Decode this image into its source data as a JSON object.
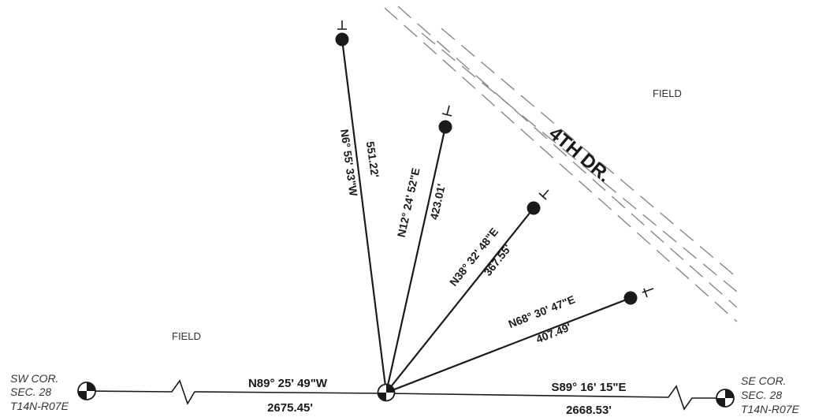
{
  "road": {
    "label": "4TH DR."
  },
  "fields": {
    "north": "FIELD",
    "west": "FIELD"
  },
  "corners": {
    "sw": {
      "line1": "SW COR.",
      "line2": "SEC. 28",
      "line3": "T14N-R07E"
    },
    "se": {
      "line1": "SE COR.",
      "line2": "SEC. 28",
      "line3": "T14N-R07E"
    }
  },
  "section_lines": {
    "west": {
      "bearing": "N89° 25' 49\"W",
      "distance": "2675.45'"
    },
    "east": {
      "bearing": "S89° 16' 15\"E",
      "distance": "2668.53'"
    }
  },
  "survey_lines": [
    {
      "bearing": "N6° 55' 33\"W",
      "distance": "551.22'"
    },
    {
      "bearing": "N12° 24' 52\"E",
      "distance": "423.01'"
    },
    {
      "bearing": "N38° 32' 48\"E",
      "distance": "367.55'"
    },
    {
      "bearing": "N68° 30' 47\"E",
      "distance": "407.49'"
    }
  ],
  "colors": {
    "ink": "#1a1a1a",
    "road_dash": "#888888",
    "label": "#333333"
  }
}
